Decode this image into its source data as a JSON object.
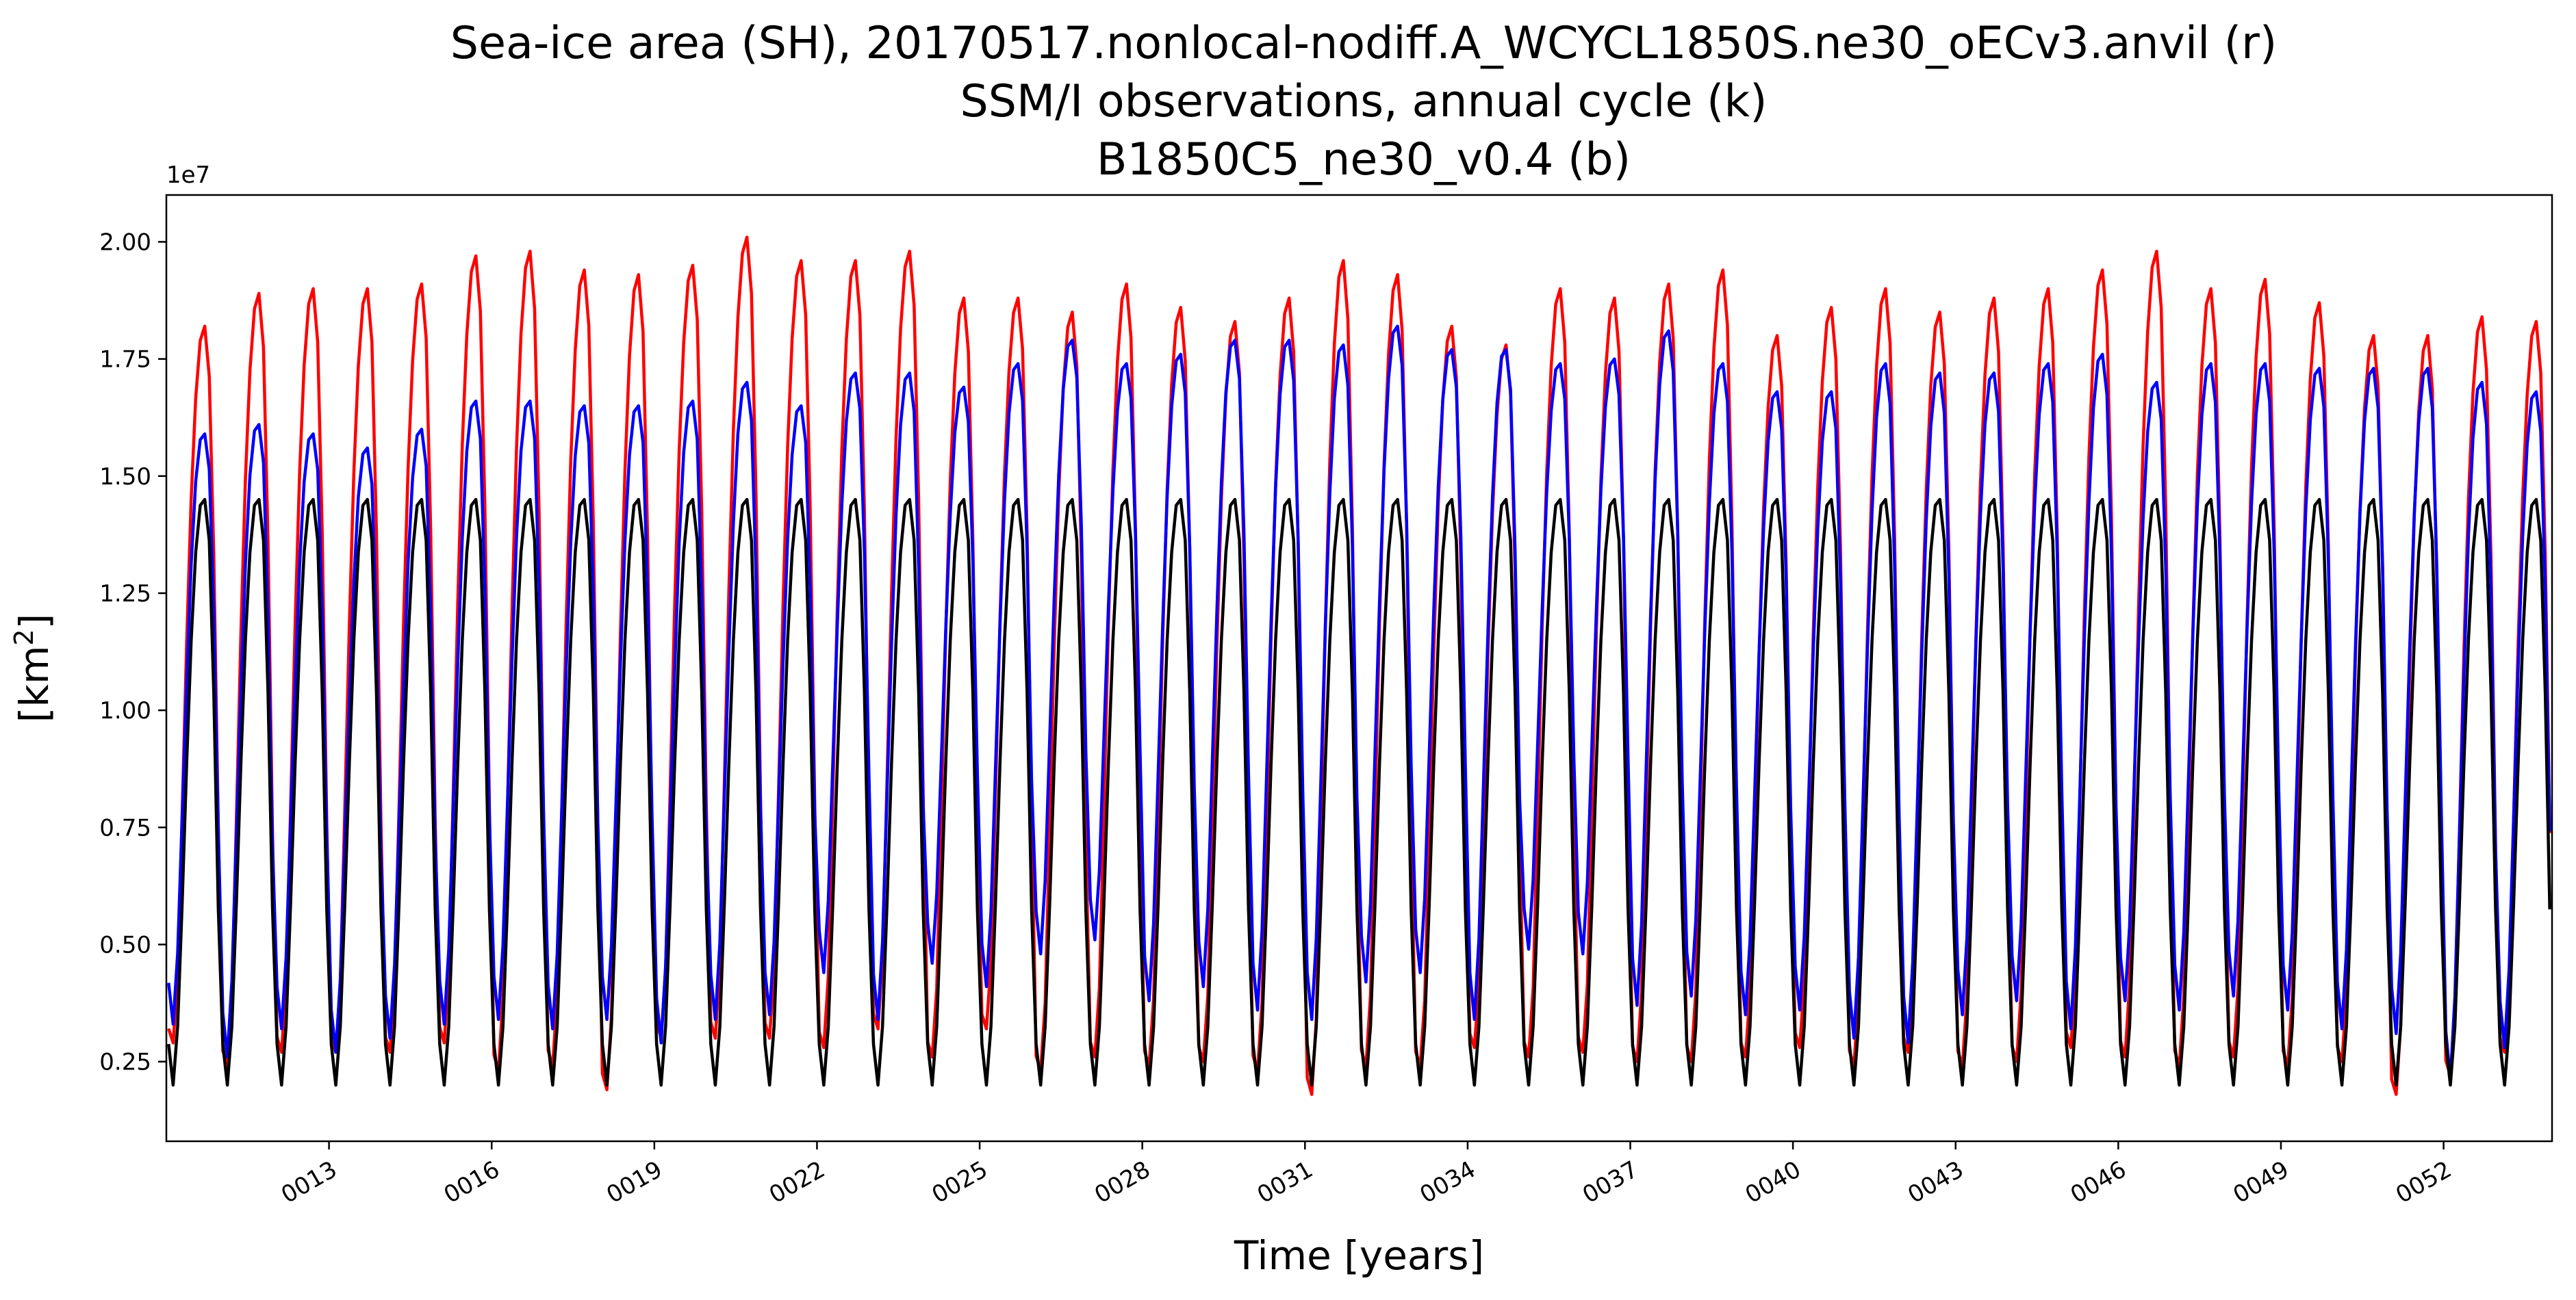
{
  "chart_data": {
    "type": "line",
    "title_lines": [
      "Sea-ice area (SH), 20170517.nonlocal-nodiff.A_WCYCL1850S.ne30_oECv3.anvil (r)",
      "SSM/I observations, annual cycle (k)",
      "B1850C5_ne30_v0.4 (b)"
    ],
    "xlabel": "Time [years]",
    "ylabel_base": "[km",
    "ylabel_sup": "2",
    "ylabel_end": "]",
    "y_offset_label": "1e7",
    "x_start_year": 10,
    "xlim": [
      10,
      54
    ],
    "ylim": [
      800000,
      21000000
    ],
    "x_ticks": [
      13,
      16,
      19,
      22,
      25,
      28,
      31,
      34,
      37,
      40,
      43,
      46,
      49,
      52
    ],
    "x_tick_labels": [
      "0013",
      "0016",
      "0019",
      "0022",
      "0025",
      "0028",
      "0031",
      "0034",
      "0037",
      "0040",
      "0043",
      "0046",
      "0049",
      "0052"
    ],
    "y_ticks": [
      2500000,
      5000000,
      7500000,
      10000000,
      12500000,
      15000000,
      17500000,
      20000000
    ],
    "y_tick_labels": [
      "0.25",
      "0.50",
      "0.75",
      "1.00",
      "1.25",
      "1.50",
      "1.75",
      "2.00"
    ],
    "annual_cycle_months": [
      1,
      2,
      3,
      4,
      5,
      6,
      7,
      8,
      9,
      10,
      11,
      12
    ],
    "series": [
      {
        "color": "#ff0000",
        "monthly_shape": [
          0.02,
          0.0,
          0.09,
          0.32,
          0.56,
          0.76,
          0.9,
          0.98,
          1.0,
          0.93,
          0.68,
          0.3
        ],
        "annual_max": [
          18200000,
          18900000,
          19000000,
          19000000,
          19100000,
          19700000,
          19800000,
          19400000,
          19300000,
          19500000,
          20100000,
          19600000,
          19600000,
          19800000,
          18800000,
          18800000,
          18500000,
          19100000,
          18600000,
          18300000,
          18800000,
          19600000,
          19300000,
          18200000,
          17800000,
          19000000,
          18800000,
          19100000,
          19400000,
          18000000,
          18600000,
          19000000,
          18500000,
          18800000,
          19000000,
          19400000,
          19800000,
          19000000,
          19200000,
          18700000,
          18000000,
          18000000,
          18400000,
          18300000
        ],
        "annual_min": [
          2900000,
          2400000,
          2700000,
          2700000,
          2700000,
          2900000,
          2300000,
          2400000,
          1900000,
          3000000,
          3000000,
          3000000,
          2800000,
          3200000,
          2600000,
          3200000,
          2300000,
          2600000,
          2400000,
          2500000,
          2300000,
          1800000,
          2400000,
          2400000,
          2800000,
          2600000,
          2700000,
          2500000,
          2500000,
          2600000,
          2800000,
          2400000,
          2700000,
          2400000,
          2500000,
          2800000,
          2600000,
          2400000,
          2600000,
          2400000,
          2500000,
          1800000,
          2200000,
          2700000
        ]
      },
      {
        "color": "#0000ff",
        "monthly_shape": [
          0.07,
          0.0,
          0.12,
          0.35,
          0.58,
          0.78,
          0.92,
          0.99,
          1.0,
          0.94,
          0.7,
          0.33
        ],
        "annual_max": [
          15900000,
          16100000,
          15900000,
          15600000,
          16000000,
          16600000,
          16600000,
          16500000,
          16500000,
          16600000,
          17000000,
          16500000,
          17200000,
          17200000,
          16900000,
          17400000,
          17900000,
          17400000,
          17600000,
          17900000,
          17900000,
          17800000,
          18200000,
          17700000,
          17700000,
          17400000,
          17500000,
          18100000,
          17400000,
          16800000,
          16800000,
          17400000,
          17200000,
          17200000,
          17400000,
          17600000,
          17000000,
          17400000,
          17400000,
          17300000,
          17300000,
          17300000,
          17000000,
          16800000
        ],
        "annual_min": [
          3300000,
          2600000,
          3200000,
          2700000,
          3000000,
          3300000,
          3400000,
          3200000,
          3400000,
          2900000,
          3400000,
          3500000,
          4400000,
          3400000,
          4600000,
          4100000,
          4800000,
          5100000,
          3800000,
          4100000,
          3600000,
          3400000,
          4200000,
          4400000,
          3400000,
          4900000,
          4800000,
          3700000,
          3900000,
          3500000,
          3600000,
          3000000,
          2900000,
          3500000,
          3800000,
          3200000,
          3800000,
          3600000,
          3900000,
          3600000,
          3200000,
          3100000,
          2100000,
          2800000
        ]
      },
      {
        "color": "#000000",
        "monthly_shape": [
          0.07,
          0.0,
          0.1,
          0.31,
          0.55,
          0.76,
          0.91,
          0.99,
          1.0,
          0.93,
          0.67,
          0.3
        ],
        "annual_max": [
          14500000
        ],
        "annual_min": [
          2000000
        ]
      }
    ]
  }
}
